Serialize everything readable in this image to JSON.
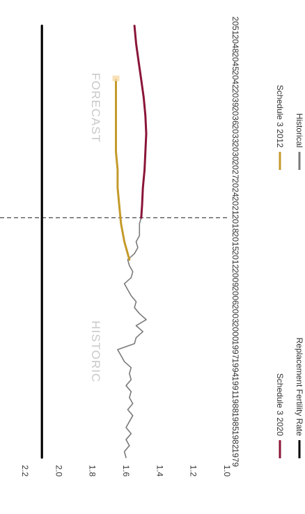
{
  "chart_data": {
    "type": "line",
    "orientation": "rotated 90 degrees clockwise (x axis runs top to bottom on the right, values increase to the left)",
    "ylim": [
      1.0,
      2.2
    ],
    "yticks": [
      "2.2",
      "2.0",
      "1.8",
      "1.6",
      "1.4",
      "1.2",
      "1.0"
    ],
    "xticks": [
      "1979",
      "1982",
      "1985",
      "1988",
      "1991",
      "1994",
      "1997",
      "2000",
      "2003",
      "2006",
      "2009",
      "2012",
      "2015",
      "2018",
      "2021",
      "2024",
      "2027",
      "2030",
      "2033",
      "2036",
      "2039",
      "2042",
      "2045",
      "2048",
      "2051"
    ],
    "zone_labels": {
      "historic": "HISTORIC",
      "forecast": "FORECAST"
    },
    "divider_year": 2019,
    "series": [
      {
        "name": "Historical",
        "color": "#7a7a7a",
        "x": [
          1979,
          1980,
          1981,
          1982,
          1983,
          1984,
          1985,
          1986,
          1987,
          1988,
          1989,
          1990,
          1991,
          1992,
          1993,
          1994,
          1995,
          1996,
          1997,
          1998,
          1999,
          2000,
          2001,
          2002,
          2003,
          2004,
          2005,
          2006,
          2007,
          2008,
          2009,
          2010,
          2011,
          2012,
          2013,
          2014,
          2015,
          2016,
          2017,
          2018,
          2019
        ],
        "y": [
          1.6,
          1.61,
          1.58,
          1.6,
          1.57,
          1.6,
          1.58,
          1.56,
          1.59,
          1.56,
          1.58,
          1.57,
          1.6,
          1.57,
          1.58,
          1.57,
          1.61,
          1.63,
          1.65,
          1.55,
          1.54,
          1.5,
          1.54,
          1.48,
          1.52,
          1.55,
          1.54,
          1.57,
          1.59,
          1.61,
          1.57,
          1.56,
          1.58,
          1.59,
          1.55,
          1.53,
          1.54,
          1.52,
          1.52,
          1.52,
          1.51
        ]
      },
      {
        "name": "Schedule 3 2012",
        "color": "#c49a2a",
        "x": [
          2012,
          2015,
          2018,
          2021,
          2024,
          2027,
          2030,
          2033,
          2036,
          2039,
          2042
        ],
        "y": [
          1.58,
          1.61,
          1.63,
          1.64,
          1.65,
          1.65,
          1.66,
          1.66,
          1.66,
          1.66,
          1.66
        ]
      },
      {
        "name": "Schedule 3 2020",
        "color": "#8a1538",
        "x": [
          2019,
          2021,
          2024,
          2027,
          2030,
          2033,
          2036,
          2039,
          2042,
          2045,
          2048,
          2051
        ],
        "y": [
          1.51,
          1.505,
          1.5,
          1.49,
          1.485,
          1.48,
          1.485,
          1.495,
          1.51,
          1.525,
          1.54,
          1.55
        ]
      },
      {
        "name": "Replacement Fertility Rate",
        "color": "#000000",
        "x": [
          1979,
          2051
        ],
        "y": [
          2.1,
          2.1
        ]
      }
    ],
    "legend": [
      {
        "label": "Schedule 3 2020",
        "color": "#8a1538"
      },
      {
        "label": "Replacement Fertility Rate",
        "color": "#000000"
      },
      {
        "label": "Schedule 3 2012",
        "color": "#c49a2a"
      },
      {
        "label": "Historical",
        "color": "#7a7a7a"
      }
    ],
    "legend_position": "bottom",
    "grid": false
  }
}
